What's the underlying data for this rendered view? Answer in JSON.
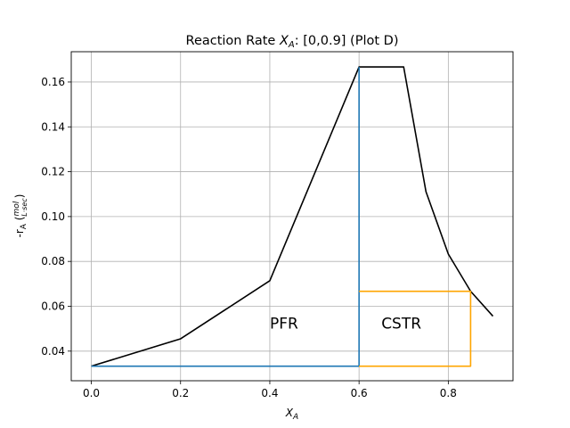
{
  "chart_data": {
    "type": "line",
    "title": "Reaction Rate X_A: [0,0.9] (Plot D)",
    "xlabel": "X_A",
    "ylabel": "-r_A (mol / L·sec)",
    "xlim": [
      -0.045,
      0.945
    ],
    "ylim": [
      0.0268,
      0.1735
    ],
    "xticks": [
      0.0,
      0.2,
      0.4,
      0.6,
      0.8
    ],
    "xtick_labels": [
      "0.0",
      "0.2",
      "0.4",
      "0.6",
      "0.8"
    ],
    "yticks": [
      0.04,
      0.06,
      0.08,
      0.1,
      0.12,
      0.14,
      0.16
    ],
    "ytick_labels": [
      "0.04",
      "0.06",
      "0.08",
      "0.10",
      "0.12",
      "0.14",
      "0.16"
    ],
    "grid": true,
    "series": [
      {
        "color": "#000000",
        "x": [
          0.0,
          0.2,
          0.4,
          0.6,
          0.7,
          0.75,
          0.8,
          0.85,
          0.9
        ],
        "y": [
          0.0333,
          0.0455,
          0.0714,
          0.1667,
          0.1667,
          0.1111,
          0.0833,
          0.0667,
          0.0556
        ]
      },
      {
        "color": "#1f77b4",
        "x": [
          0.0,
          0.6,
          0.6
        ],
        "y": [
          0.0333,
          0.0333,
          0.1667
        ]
      },
      {
        "color": "#ffa500",
        "x": [
          0.6,
          0.85,
          0.85,
          0.6
        ],
        "y": [
          0.0333,
          0.0333,
          0.0667,
          0.0667
        ]
      }
    ],
    "annotations": [
      {
        "text": "PFR",
        "x": 0.4,
        "y": 0.05
      },
      {
        "text": "CSTR",
        "x": 0.65,
        "y": 0.05
      }
    ]
  }
}
